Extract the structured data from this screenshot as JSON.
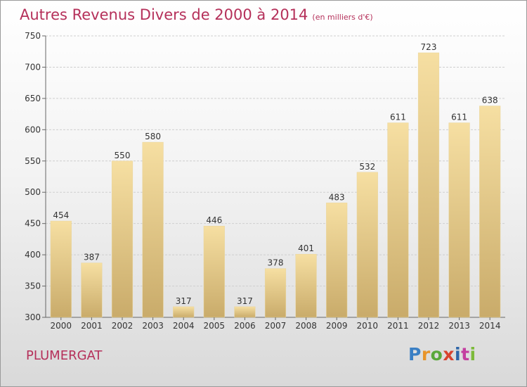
{
  "title": "Autres Revenus Divers de 2000 à 2014",
  "subtitle": "(en milliers d'€)",
  "location": "PLUMERGAT",
  "logo": {
    "text": "Proxiti",
    "colors": [
      "#3a7fc4",
      "#e8942a",
      "#5aa83b",
      "#d8432f",
      "#2f66a8",
      "#c43fa0",
      "#7cba3a"
    ]
  },
  "colors": {
    "title": "#b5305a",
    "bar_light": "#f6dfa2",
    "bar_dark": "#c9ab6a"
  },
  "chart_data": {
    "type": "bar",
    "title": "Autres Revenus Divers de 2000 à 2014",
    "categories": [
      "2000",
      "2001",
      "2002",
      "2003",
      "2004",
      "2005",
      "2006",
      "2007",
      "2008",
      "2009",
      "2010",
      "2011",
      "2012",
      "2013",
      "2014"
    ],
    "values": [
      454,
      387,
      550,
      580,
      317,
      446,
      317,
      378,
      401,
      483,
      532,
      611,
      723,
      611,
      638
    ],
    "ylim": [
      300,
      750
    ],
    "yticks": [
      300,
      350,
      400,
      450,
      500,
      550,
      600,
      650,
      700,
      750
    ],
    "grid": true,
    "data_labels": true
  }
}
